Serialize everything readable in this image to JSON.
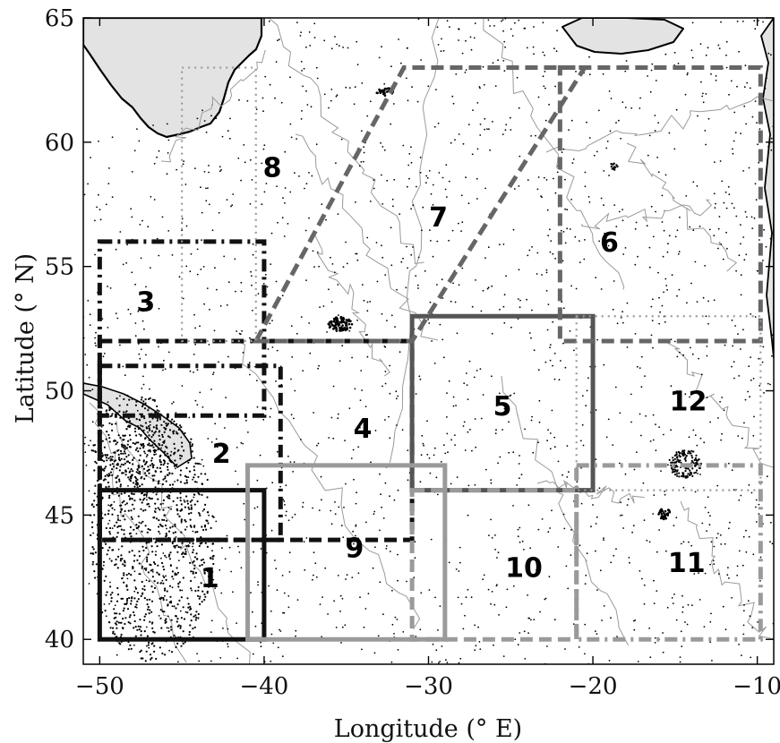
{
  "axes": {
    "xlabel": "Longitude (° E)",
    "ylabel": "Latitude (° N)",
    "xlim": [
      -51,
      -9
    ],
    "ylim": [
      39,
      65
    ],
    "xticks": [
      {
        "value": -50,
        "label": "−50"
      },
      {
        "value": -40,
        "label": "−40"
      },
      {
        "value": -30,
        "label": "−30"
      },
      {
        "value": -20,
        "label": "−20"
      },
      {
        "value": -10,
        "label": "−10"
      }
    ],
    "yticks": [
      {
        "value": 40,
        "label": "40"
      },
      {
        "value": 45,
        "label": "45"
      },
      {
        "value": 50,
        "label": "50"
      },
      {
        "value": 55,
        "label": "55"
      },
      {
        "value": 60,
        "label": "60"
      },
      {
        "value": 65,
        "label": "65"
      }
    ]
  },
  "colors": {
    "land": "#e3e3e3",
    "coast": "#000000",
    "contour": "#9a9a9a",
    "dots": "#000000",
    "dark": "#111111",
    "mid_dark": "#555555",
    "mid": "#666666",
    "light": "#9a9a9a"
  },
  "regions": [
    {
      "id": "1",
      "label": "1",
      "shape": "rect",
      "lon": [
        -50,
        -40
      ],
      "lat": [
        40,
        46
      ],
      "style": "solid",
      "color": "dark",
      "label_lon": -43.3,
      "label_lat": 42.5
    },
    {
      "id": "2",
      "label": "2",
      "shape": "rect",
      "lon": [
        -50,
        -39
      ],
      "lat": [
        44,
        51
      ],
      "style": "dashdot",
      "color": "dark",
      "label_lon": -42.6,
      "label_lat": 47.5
    },
    {
      "id": "3",
      "label": "3",
      "shape": "rect",
      "lon": [
        -50,
        -40
      ],
      "lat": [
        49,
        56
      ],
      "style": "dashdot",
      "color": "dark",
      "label_lon": -47.2,
      "label_lat": 53.6
    },
    {
      "id": "4",
      "label": "4",
      "shape": "rect",
      "lon": [
        -50,
        -31
      ],
      "lat": [
        44,
        52
      ],
      "style": "dash",
      "color": "dark",
      "label_lon": -34,
      "label_lat": 48.5
    },
    {
      "id": "5",
      "label": "5",
      "shape": "rect",
      "lon": [
        -31,
        -20
      ],
      "lat": [
        46,
        53
      ],
      "style": "solid",
      "color": "mid_dark",
      "label_lon": -25.5,
      "label_lat": 49.4
    },
    {
      "id": "6",
      "label": "6",
      "shape": "rect",
      "lon": [
        -22,
        -9.8
      ],
      "lat": [
        52,
        63
      ],
      "style": "dash",
      "color": "mid",
      "label_lon": -19,
      "label_lat": 56
    },
    {
      "id": "7",
      "label": "7",
      "shape": "poly",
      "points": [
        [
          -40.5,
          52
        ],
        [
          -31,
          52
        ],
        [
          -20.5,
          63
        ],
        [
          -31.5,
          63
        ]
      ],
      "style": "dash",
      "color": "mid",
      "label_lon": -29.4,
      "label_lat": 57
    },
    {
      "id": "8",
      "label": "8",
      "shape": "rect",
      "lon": [
        -45,
        -40.5
      ],
      "lat": [
        52,
        63
      ],
      "style": "dot",
      "color": "light",
      "label_lon": -39.5,
      "label_lat": 59
    },
    {
      "id": "9",
      "label": "9",
      "shape": "rect",
      "lon": [
        -41,
        -29
      ],
      "lat": [
        40,
        47
      ],
      "style": "solid",
      "color": "light",
      "label_lon": -34.5,
      "label_lat": 43.7
    },
    {
      "id": "10",
      "label": "10",
      "shape": "rect",
      "lon": [
        -31,
        -21
      ],
      "lat": [
        40,
        46
      ],
      "style": "dash",
      "color": "light",
      "label_lon": -24.2,
      "label_lat": 42.9
    },
    {
      "id": "11",
      "label": "11",
      "shape": "rect",
      "lon": [
        -21,
        -9.8
      ],
      "lat": [
        40,
        47
      ],
      "style": "dashdot",
      "color": "light",
      "label_lon": -14.3,
      "label_lat": 43.1
    },
    {
      "id": "12",
      "label": "12",
      "shape": "rect",
      "lon": [
        -21,
        -9.8
      ],
      "lat": [
        46,
        53
      ],
      "style": "dot",
      "color": "light",
      "label_lon": -14.2,
      "label_lat": 49.6
    }
  ]
}
